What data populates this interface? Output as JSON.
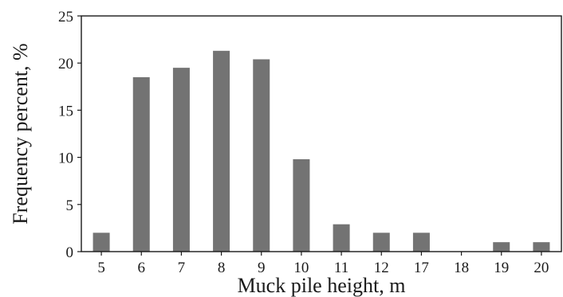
{
  "chart_data": {
    "type": "bar",
    "title": "",
    "xlabel": "Muck pile height, m",
    "ylabel": "Frequency percent, %",
    "categories": [
      "5",
      "6",
      "7",
      "8",
      "9",
      "10",
      "11",
      "12",
      "17",
      "18",
      "19",
      "20"
    ],
    "values": [
      2,
      18.5,
      19.5,
      21.3,
      20.4,
      9.8,
      2.9,
      2,
      2,
      0,
      1,
      1
    ],
    "yticks": [
      "0",
      "5",
      "10",
      "15",
      "20",
      "25"
    ],
    "ylim": [
      0,
      25
    ],
    "grid": false,
    "legend": "none",
    "colors": {
      "bar": "#737373",
      "axis": "#1a1a1a"
    }
  }
}
